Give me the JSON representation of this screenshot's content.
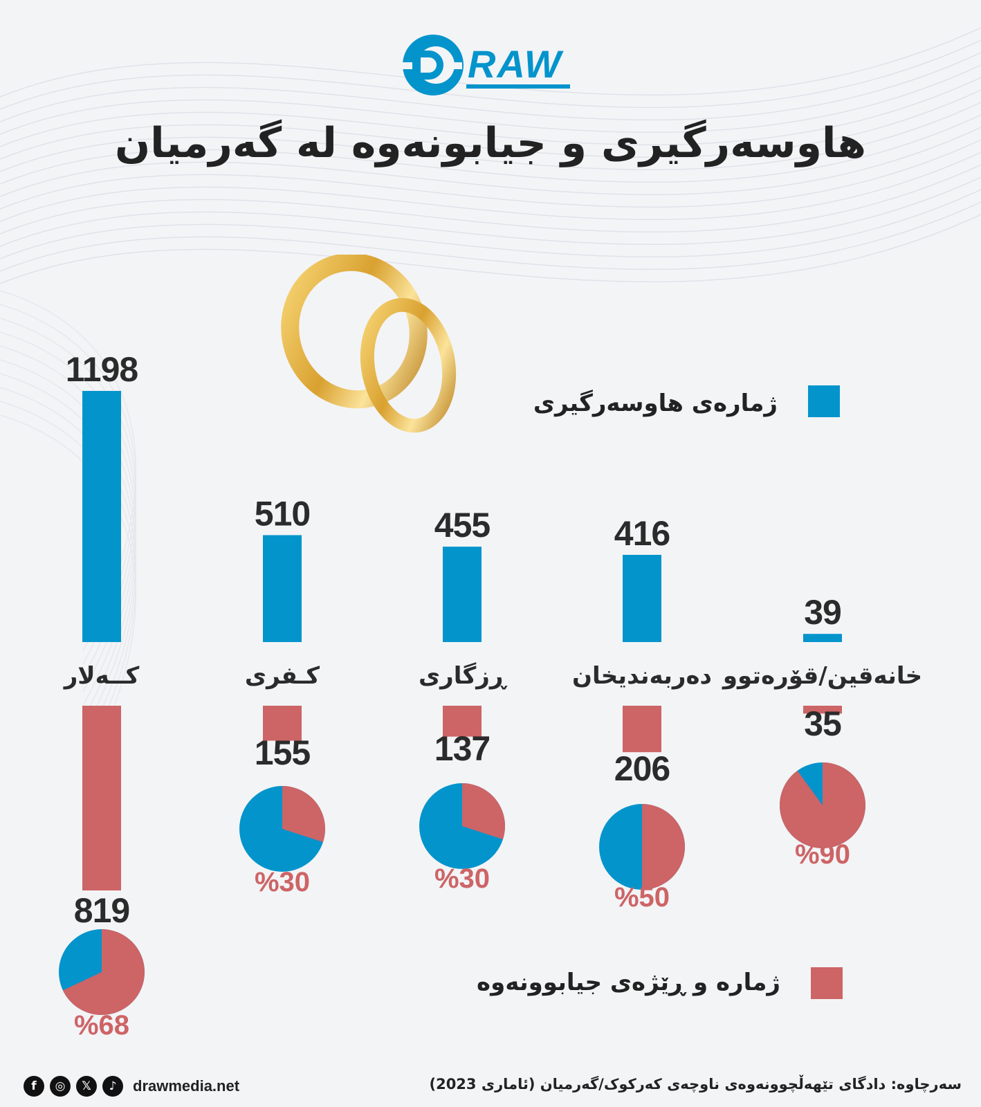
{
  "brand": {
    "logo_text": "DRAW",
    "website": "drawmedia.net"
  },
  "title": "هاوسەرگیری و جیابونەوە لە گەرمیان",
  "legend": {
    "marriage": "ژمارەی هاوسەرگیری",
    "divorce": "ژمارە و ڕێژەی جیابوونەوە"
  },
  "colors": {
    "marriage": "#0394cc",
    "divorce": "#cd6466",
    "text": "#2b2b2b"
  },
  "social_icons": [
    "facebook-icon",
    "instagram-icon",
    "x-icon",
    "tiktok-icon"
  ],
  "source": "سەرچاوە: دادگای تێهەڵچوونەوەی ناوچەی کەرکوک/گەرمیان (ئاماری 2023)",
  "chart_data": {
    "type": "bar",
    "categories": [
      "کــەلار",
      "کـفری",
      "ڕزگاری",
      "دەربەندیخان",
      "خانەقین/قۆرەتوو"
    ],
    "series": [
      {
        "name": "ژمارەی هاوسەرگیری",
        "values": [
          1198,
          510,
          455,
          416,
          39
        ]
      },
      {
        "name": "ژمارە و ڕێژەی جیابوونەوە",
        "values": [
          819,
          155,
          137,
          206,
          35
        ]
      }
    ],
    "divorce_ratio_percent": [
      68,
      30,
      30,
      50,
      90
    ],
    "divorce_ratio_labels": [
      "%68",
      "%30",
      "%30",
      "%50",
      "%90"
    ]
  }
}
